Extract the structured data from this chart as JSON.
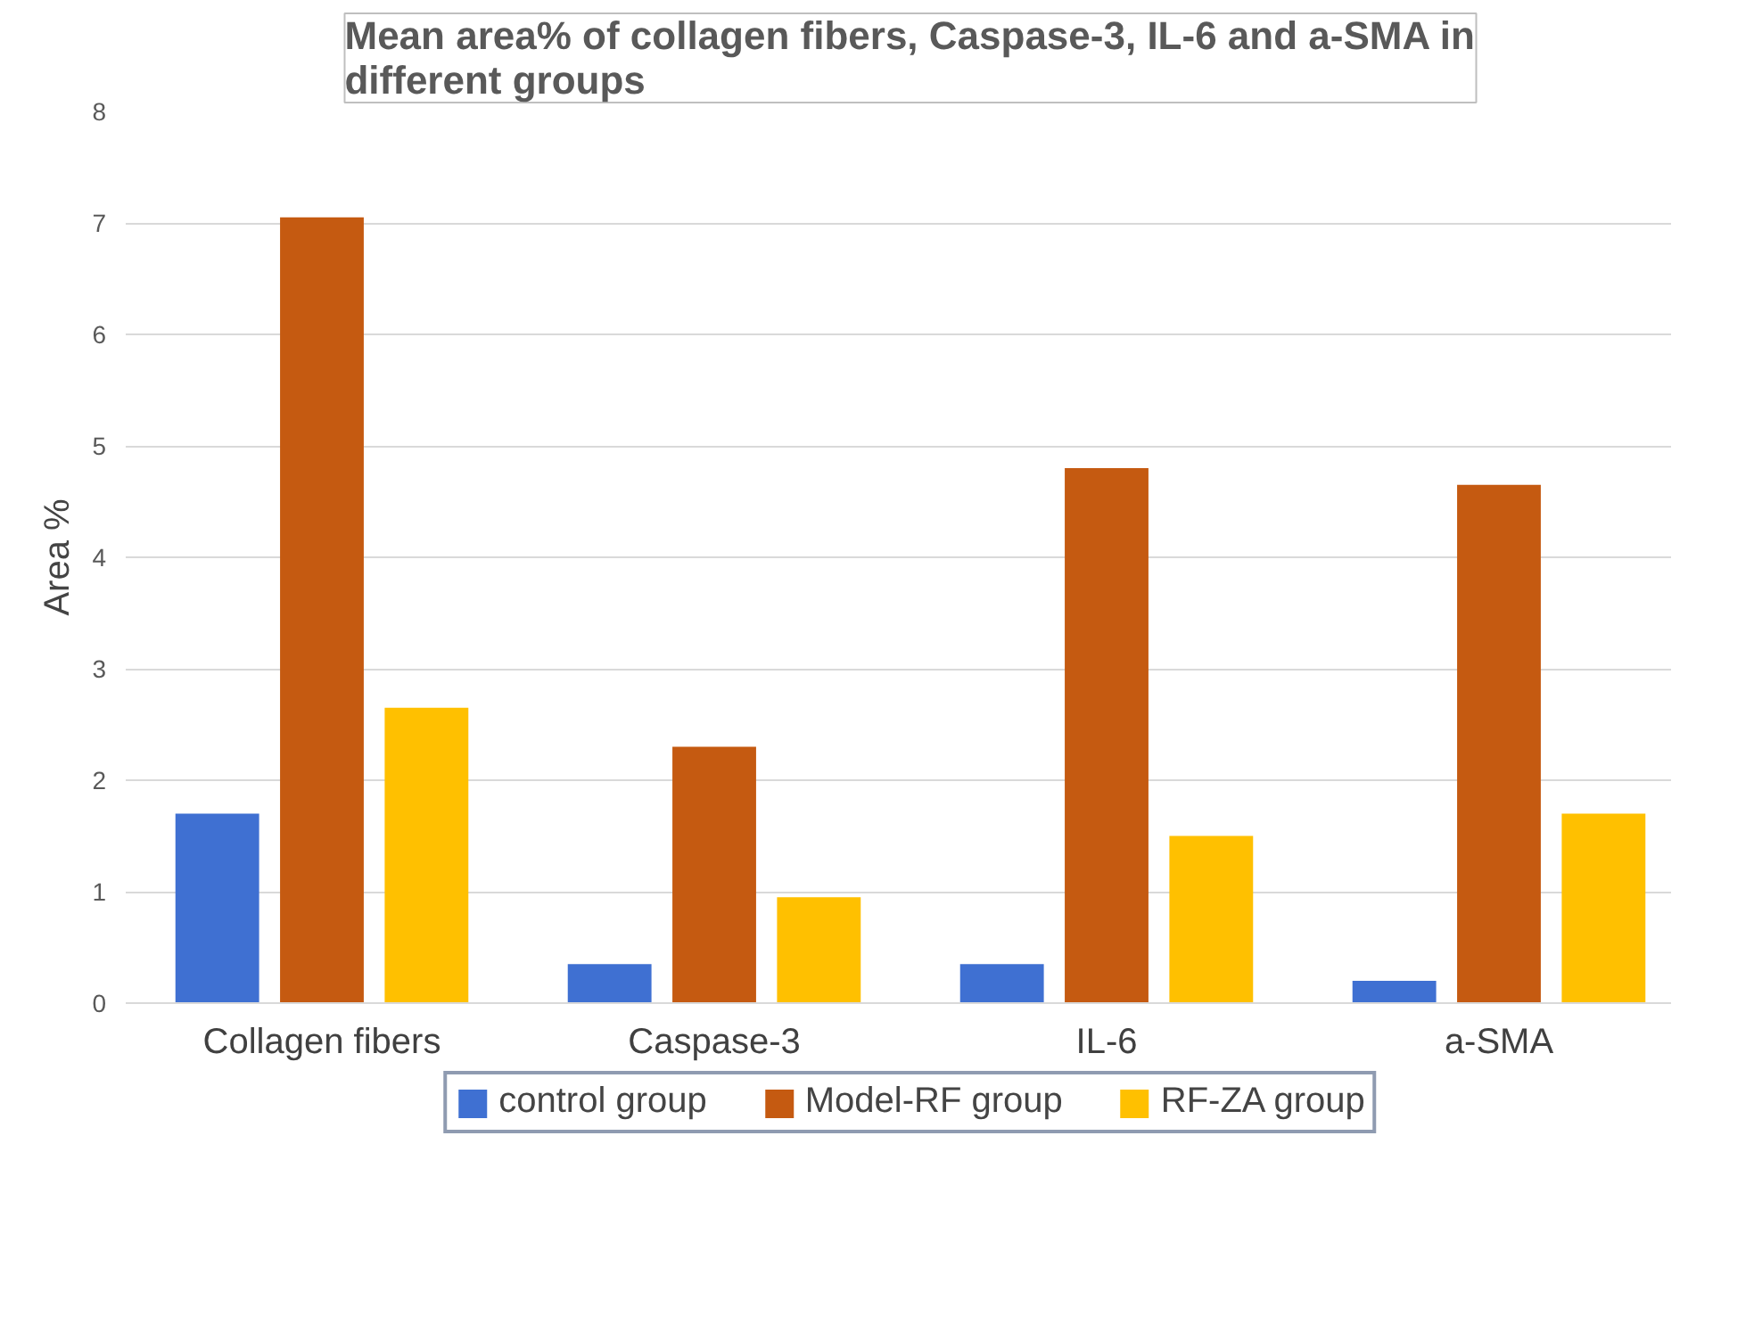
{
  "chart_data": {
    "type": "bar",
    "title": "Mean area% of collagen fibers, Caspase-3, IL-6 and a-SMA in different groups",
    "ylabel": "Area %",
    "categories": [
      "Collagen fibers",
      "Caspase-3",
      "IL-6",
      "a-SMA"
    ],
    "series": [
      {
        "name": "control group",
        "color": "#3f70d2",
        "values": [
          1.7,
          0.35,
          0.35,
          0.2
        ]
      },
      {
        "name": "Model-RF group",
        "color": "#c55a11",
        "values": [
          7.05,
          2.3,
          4.8,
          4.65
        ]
      },
      {
        "name": "RF-ZA group",
        "color": "#ffc000",
        "values": [
          2.65,
          0.95,
          1.5,
          1.7
        ]
      }
    ],
    "ylim": [
      0,
      8
    ],
    "yticks": [
      0,
      1,
      2,
      3,
      4,
      5,
      6,
      7,
      8
    ],
    "grid": "y",
    "legend": "bottom"
  }
}
